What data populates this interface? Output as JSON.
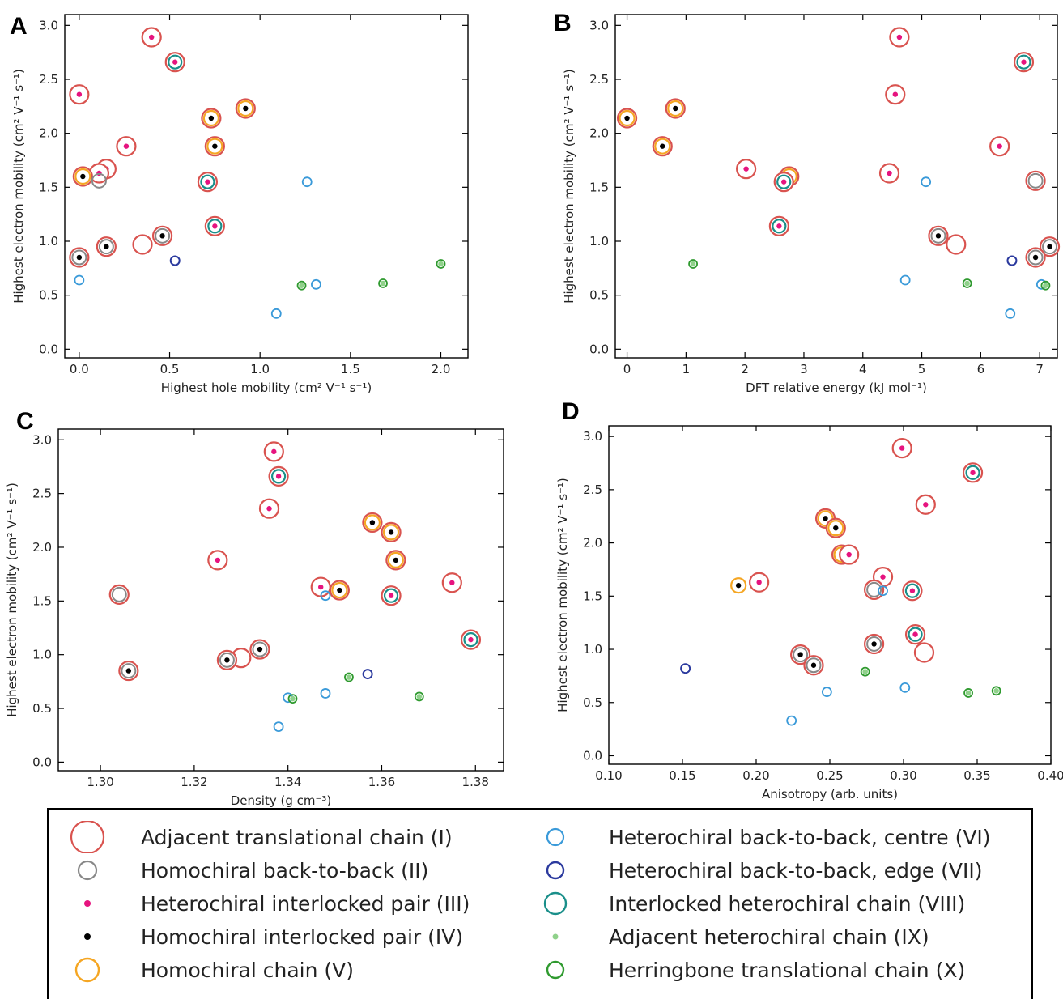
{
  "colors": {
    "I": "#d9534f",
    "II": "#888888",
    "III": "#e6137f",
    "IV": "#000000",
    "V": "#f5a623",
    "VI": "#3a9ad9",
    "VII": "#2b3a9e",
    "VIII": "#1a8f8a",
    "IX": "#8fd18a",
    "X": "#2f9a2f"
  },
  "legend": [
    {
      "key": "I",
      "label": "Adjacent translational chain (I)"
    },
    {
      "key": "II",
      "label": "Homochiral back-to-back (II)"
    },
    {
      "key": "III",
      "label": "Heterochiral interlocked pair (III)"
    },
    {
      "key": "IV",
      "label": "Homochiral interlocked pair (IV)"
    },
    {
      "key": "V",
      "label": "Homochiral chain (V)"
    },
    {
      "key": "VI",
      "label": "Heterochiral back-to-back, centre (VI)"
    },
    {
      "key": "VII",
      "label": "Heterochiral back-to-back, edge (VII)"
    },
    {
      "key": "VIII",
      "label": "Interlocked heterochiral chain (VIII)"
    },
    {
      "key": "IX",
      "label": "Adjacent heterochiral chain (IX)"
    },
    {
      "key": "X",
      "label": "Herringbone translational chain (X)"
    }
  ],
  "chart_data": [
    {
      "panel": "A",
      "type": "scatter",
      "xlabel": "Highest hole mobility (cm² V⁻¹ s⁻¹)",
      "ylabel": "Highest electron mobility (cm² V⁻¹ s⁻¹)",
      "xlim": [
        -0.08,
        2.15
      ],
      "ylim": [
        -0.08,
        3.1
      ],
      "xticks": [
        0.0,
        0.5,
        1.0,
        1.5,
        2.0
      ],
      "yticks": [
        0.0,
        0.5,
        1.0,
        1.5,
        2.0,
        2.5,
        3.0
      ],
      "tick_decimals": 1,
      "points": [
        {
          "x": 0.4,
          "y": 2.89,
          "types": [
            "I",
            "III"
          ]
        },
        {
          "x": 0.53,
          "y": 2.66,
          "types": [
            "I",
            "VIII",
            "III"
          ]
        },
        {
          "x": 0.0,
          "y": 2.36,
          "types": [
            "I",
            "III"
          ]
        },
        {
          "x": 0.92,
          "y": 2.23,
          "types": [
            "I",
            "V",
            "IV"
          ]
        },
        {
          "x": 0.73,
          "y": 2.14,
          "types": [
            "I",
            "V",
            "IV"
          ]
        },
        {
          "x": 0.26,
          "y": 1.88,
          "types": [
            "I",
            "III"
          ]
        },
        {
          "x": 0.75,
          "y": 1.88,
          "types": [
            "I",
            "V",
            "IV"
          ]
        },
        {
          "x": 0.15,
          "y": 1.67,
          "types": [
            "I",
            "III"
          ]
        },
        {
          "x": 0.11,
          "y": 1.63,
          "types": [
            "I",
            "III"
          ]
        },
        {
          "x": 0.02,
          "y": 1.6,
          "types": [
            "I",
            "V",
            "IV"
          ]
        },
        {
          "x": 0.11,
          "y": 1.56,
          "types": [
            "II"
          ]
        },
        {
          "x": 0.71,
          "y": 1.55,
          "types": [
            "I",
            "VIII",
            "III"
          ]
        },
        {
          "x": 1.26,
          "y": 1.55,
          "types": [
            "VI"
          ]
        },
        {
          "x": 0.75,
          "y": 1.14,
          "types": [
            "I",
            "VIII",
            "III"
          ]
        },
        {
          "x": 0.46,
          "y": 1.05,
          "types": [
            "I",
            "II",
            "IV"
          ]
        },
        {
          "x": 0.35,
          "y": 0.97,
          "types": [
            "I"
          ]
        },
        {
          "x": 0.15,
          "y": 0.95,
          "types": [
            "I",
            "II",
            "IV"
          ]
        },
        {
          "x": 0.0,
          "y": 0.85,
          "types": [
            "I",
            "II",
            "IV"
          ]
        },
        {
          "x": 0.53,
          "y": 0.82,
          "types": [
            "VII"
          ]
        },
        {
          "x": 2.0,
          "y": 0.79,
          "types": [
            "X",
            "IX"
          ]
        },
        {
          "x": 0.0,
          "y": 0.64,
          "types": [
            "VI"
          ]
        },
        {
          "x": 1.68,
          "y": 0.61,
          "types": [
            "X",
            "IX"
          ]
        },
        {
          "x": 1.31,
          "y": 0.6,
          "types": [
            "VI"
          ]
        },
        {
          "x": 1.23,
          "y": 0.59,
          "types": [
            "X",
            "IX"
          ]
        },
        {
          "x": 1.09,
          "y": 0.33,
          "types": [
            "VI"
          ]
        }
      ]
    },
    {
      "panel": "B",
      "type": "scatter",
      "xlabel": "DFT relative energy (kJ mol⁻¹)",
      "ylabel": "Highest electron mobility (cm² V⁻¹ s⁻¹)",
      "xlim": [
        -0.2,
        7.3
      ],
      "ylim": [
        -0.08,
        3.1
      ],
      "xticks": [
        0,
        1,
        2,
        3,
        4,
        5,
        6,
        7
      ],
      "yticks": [
        0.0,
        0.5,
        1.0,
        1.5,
        2.0,
        2.5,
        3.0
      ],
      "tick_decimals": 1,
      "xtick_decimals": 0,
      "points": [
        {
          "x": 4.62,
          "y": 2.89,
          "types": [
            "I",
            "III"
          ]
        },
        {
          "x": 6.73,
          "y": 2.66,
          "types": [
            "I",
            "VIII",
            "III"
          ]
        },
        {
          "x": 4.55,
          "y": 2.36,
          "types": [
            "I",
            "III"
          ]
        },
        {
          "x": 0.82,
          "y": 2.23,
          "types": [
            "I",
            "V",
            "IV"
          ]
        },
        {
          "x": 0.0,
          "y": 2.14,
          "types": [
            "I",
            "V",
            "IV"
          ]
        },
        {
          "x": 0.6,
          "y": 1.88,
          "types": [
            "I",
            "V",
            "IV"
          ]
        },
        {
          "x": 6.32,
          "y": 1.88,
          "types": [
            "I",
            "III"
          ]
        },
        {
          "x": 2.02,
          "y": 1.67,
          "types": [
            "I",
            "III"
          ]
        },
        {
          "x": 4.45,
          "y": 1.63,
          "types": [
            "I",
            "III"
          ]
        },
        {
          "x": 2.75,
          "y": 1.6,
          "types": [
            "I",
            "V",
            "IV"
          ]
        },
        {
          "x": 6.93,
          "y": 1.56,
          "types": [
            "I",
            "II"
          ]
        },
        {
          "x": 5.07,
          "y": 1.55,
          "types": [
            "VI"
          ]
        },
        {
          "x": 2.66,
          "y": 1.55,
          "types": [
            "I",
            "VIII",
            "III"
          ]
        },
        {
          "x": 2.58,
          "y": 1.14,
          "types": [
            "I",
            "VIII",
            "III"
          ]
        },
        {
          "x": 5.28,
          "y": 1.05,
          "types": [
            "I",
            "II",
            "IV"
          ]
        },
        {
          "x": 5.58,
          "y": 0.97,
          "types": [
            "I"
          ]
        },
        {
          "x": 7.17,
          "y": 0.95,
          "types": [
            "I",
            "II",
            "IV"
          ]
        },
        {
          "x": 6.93,
          "y": 0.85,
          "types": [
            "I",
            "II",
            "IV"
          ]
        },
        {
          "x": 6.53,
          "y": 0.82,
          "types": [
            "VII"
          ]
        },
        {
          "x": 1.12,
          "y": 0.79,
          "types": [
            "X",
            "IX"
          ]
        },
        {
          "x": 4.72,
          "y": 0.64,
          "types": [
            "VI"
          ]
        },
        {
          "x": 5.77,
          "y": 0.61,
          "types": [
            "X",
            "IX"
          ]
        },
        {
          "x": 7.03,
          "y": 0.6,
          "types": [
            "VI"
          ]
        },
        {
          "x": 7.1,
          "y": 0.59,
          "types": [
            "X",
            "IX"
          ]
        },
        {
          "x": 6.5,
          "y": 0.33,
          "types": [
            "VI"
          ]
        }
      ]
    },
    {
      "panel": "C",
      "type": "scatter",
      "xlabel": "Density (g cm⁻³)",
      "ylabel": "Highest electron mobility (cm² V⁻¹ s⁻¹)",
      "xlim": [
        1.291,
        1.386
      ],
      "ylim": [
        -0.08,
        3.1
      ],
      "xticks": [
        1.3,
        1.32,
        1.34,
        1.36,
        1.38
      ],
      "yticks": [
        0.0,
        0.5,
        1.0,
        1.5,
        2.0,
        2.5,
        3.0
      ],
      "tick_decimals": 1,
      "xtick_decimals": 2,
      "points": [
        {
          "x": 1.337,
          "y": 2.89,
          "types": [
            "I",
            "III"
          ]
        },
        {
          "x": 1.338,
          "y": 2.66,
          "types": [
            "I",
            "VIII",
            "III"
          ]
        },
        {
          "x": 1.336,
          "y": 2.36,
          "types": [
            "I",
            "III"
          ]
        },
        {
          "x": 1.358,
          "y": 2.23,
          "types": [
            "I",
            "V",
            "IV"
          ]
        },
        {
          "x": 1.362,
          "y": 2.14,
          "types": [
            "I",
            "V",
            "IV"
          ]
        },
        {
          "x": 1.325,
          "y": 1.88,
          "types": [
            "I",
            "III"
          ]
        },
        {
          "x": 1.363,
          "y": 1.88,
          "types": [
            "I",
            "V",
            "IV"
          ]
        },
        {
          "x": 1.375,
          "y": 1.67,
          "types": [
            "I",
            "III"
          ]
        },
        {
          "x": 1.347,
          "y": 1.63,
          "types": [
            "I",
            "III"
          ]
        },
        {
          "x": 1.351,
          "y": 1.6,
          "types": [
            "I",
            "V",
            "IV"
          ]
        },
        {
          "x": 1.304,
          "y": 1.56,
          "types": [
            "I",
            "II"
          ]
        },
        {
          "x": 1.348,
          "y": 1.55,
          "types": [
            "VI"
          ]
        },
        {
          "x": 1.362,
          "y": 1.55,
          "types": [
            "I",
            "VIII",
            "III"
          ]
        },
        {
          "x": 1.379,
          "y": 1.14,
          "types": [
            "I",
            "VIII",
            "III"
          ]
        },
        {
          "x": 1.334,
          "y": 1.05,
          "types": [
            "I",
            "II",
            "IV"
          ]
        },
        {
          "x": 1.33,
          "y": 0.97,
          "types": [
            "I"
          ]
        },
        {
          "x": 1.327,
          "y": 0.95,
          "types": [
            "I",
            "II",
            "IV"
          ]
        },
        {
          "x": 1.306,
          "y": 0.85,
          "types": [
            "I",
            "II",
            "IV"
          ]
        },
        {
          "x": 1.357,
          "y": 0.82,
          "types": [
            "VII"
          ]
        },
        {
          "x": 1.353,
          "y": 0.79,
          "types": [
            "X",
            "IX"
          ]
        },
        {
          "x": 1.348,
          "y": 0.64,
          "types": [
            "VI"
          ]
        },
        {
          "x": 1.368,
          "y": 0.61,
          "types": [
            "X",
            "IX"
          ]
        },
        {
          "x": 1.34,
          "y": 0.6,
          "types": [
            "VI"
          ]
        },
        {
          "x": 1.341,
          "y": 0.59,
          "types": [
            "X",
            "IX"
          ]
        },
        {
          "x": 1.338,
          "y": 0.33,
          "types": [
            "VI"
          ]
        }
      ]
    },
    {
      "panel": "D",
      "type": "scatter",
      "xlabel": "Anisotropy (arb. units)",
      "ylabel": "Highest electron mobility (cm² V⁻¹ s⁻¹)",
      "xlim": [
        0.1,
        0.4
      ],
      "ylim": [
        -0.08,
        3.1
      ],
      "xticks": [
        0.1,
        0.15,
        0.2,
        0.25,
        0.3,
        0.35,
        0.4
      ],
      "yticks": [
        0.0,
        0.5,
        1.0,
        1.5,
        2.0,
        2.5,
        3.0
      ],
      "tick_decimals": 1,
      "xtick_decimals": 2,
      "points": [
        {
          "x": 0.299,
          "y": 2.89,
          "types": [
            "I",
            "III"
          ]
        },
        {
          "x": 0.347,
          "y": 2.66,
          "types": [
            "I",
            "VIII",
            "III"
          ]
        },
        {
          "x": 0.315,
          "y": 2.36,
          "types": [
            "I",
            "III"
          ]
        },
        {
          "x": 0.247,
          "y": 2.23,
          "types": [
            "I",
            "V",
            "IV"
          ]
        },
        {
          "x": 0.254,
          "y": 2.14,
          "types": [
            "I",
            "V",
            "IV"
          ]
        },
        {
          "x": 0.258,
          "y": 1.89,
          "types": [
            "I",
            "V",
            "IV"
          ]
        },
        {
          "x": 0.263,
          "y": 1.89,
          "types": [
            "I",
            "III"
          ]
        },
        {
          "x": 0.286,
          "y": 1.68,
          "types": [
            "I",
            "III"
          ]
        },
        {
          "x": 0.202,
          "y": 1.63,
          "types": [
            "I",
            "III"
          ]
        },
        {
          "x": 0.188,
          "y": 1.6,
          "types": [
            "V",
            "IV"
          ]
        },
        {
          "x": 0.28,
          "y": 1.56,
          "types": [
            "I",
            "II"
          ]
        },
        {
          "x": 0.286,
          "y": 1.55,
          "types": [
            "VI"
          ]
        },
        {
          "x": 0.306,
          "y": 1.55,
          "types": [
            "I",
            "VIII",
            "III"
          ]
        },
        {
          "x": 0.308,
          "y": 1.14,
          "types": [
            "I",
            "VIII",
            "III"
          ]
        },
        {
          "x": 0.28,
          "y": 1.05,
          "types": [
            "I",
            "II",
            "IV"
          ]
        },
        {
          "x": 0.314,
          "y": 0.97,
          "types": [
            "I"
          ]
        },
        {
          "x": 0.23,
          "y": 0.95,
          "types": [
            "I",
            "II",
            "IV"
          ]
        },
        {
          "x": 0.239,
          "y": 0.85,
          "types": [
            "I",
            "II",
            "IV"
          ]
        },
        {
          "x": 0.152,
          "y": 0.82,
          "types": [
            "VII"
          ]
        },
        {
          "x": 0.274,
          "y": 0.79,
          "types": [
            "X",
            "IX"
          ]
        },
        {
          "x": 0.301,
          "y": 0.64,
          "types": [
            "VI"
          ]
        },
        {
          "x": 0.363,
          "y": 0.61,
          "types": [
            "X",
            "IX"
          ]
        },
        {
          "x": 0.248,
          "y": 0.6,
          "types": [
            "VI"
          ]
        },
        {
          "x": 0.344,
          "y": 0.59,
          "types": [
            "X",
            "IX"
          ]
        },
        {
          "x": 0.224,
          "y": 0.33,
          "types": [
            "VI"
          ]
        }
      ]
    }
  ]
}
